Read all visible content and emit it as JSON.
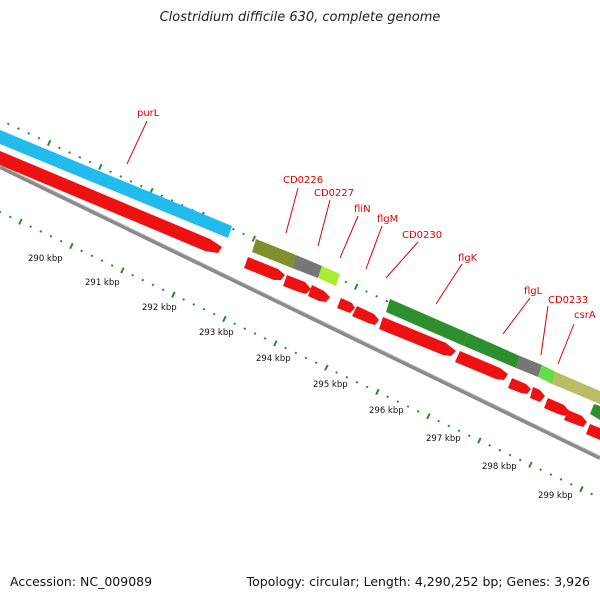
{
  "header": {
    "title": "Clostridium difficile 630, complete genome"
  },
  "footer": {
    "accession": "Accession: NC_009089",
    "summary": "Topology: circular; Length: 4,290,252 bp; Genes: 3,926"
  },
  "colors": {
    "label": "#dd0000",
    "tick": "#2a8a2a",
    "backbone": "#8a8a8a",
    "cds_red": "#ee1111",
    "light_blue": "#22bbee",
    "olive": "#7f8f2a",
    "gray": "#777777",
    "yellow_green": "#aaee33",
    "green": "#2d8f2d",
    "light_green": "#66dd44",
    "khaki": "#bbbb66"
  },
  "scale": {
    "kbp_labels": [
      "290 kbp",
      "291 kbp",
      "292 kbp",
      "293 kbp",
      "294 kbp",
      "295 kbp",
      "296 kbp",
      "297 kbp",
      "298 kbp",
      "299 kbp"
    ]
  },
  "gene_labels": [
    "purL",
    "CD0226",
    "CD0227",
    "fliN",
    "flgM",
    "CD0230",
    "flgK",
    "flgL",
    "CD0233",
    "csrA"
  ]
}
